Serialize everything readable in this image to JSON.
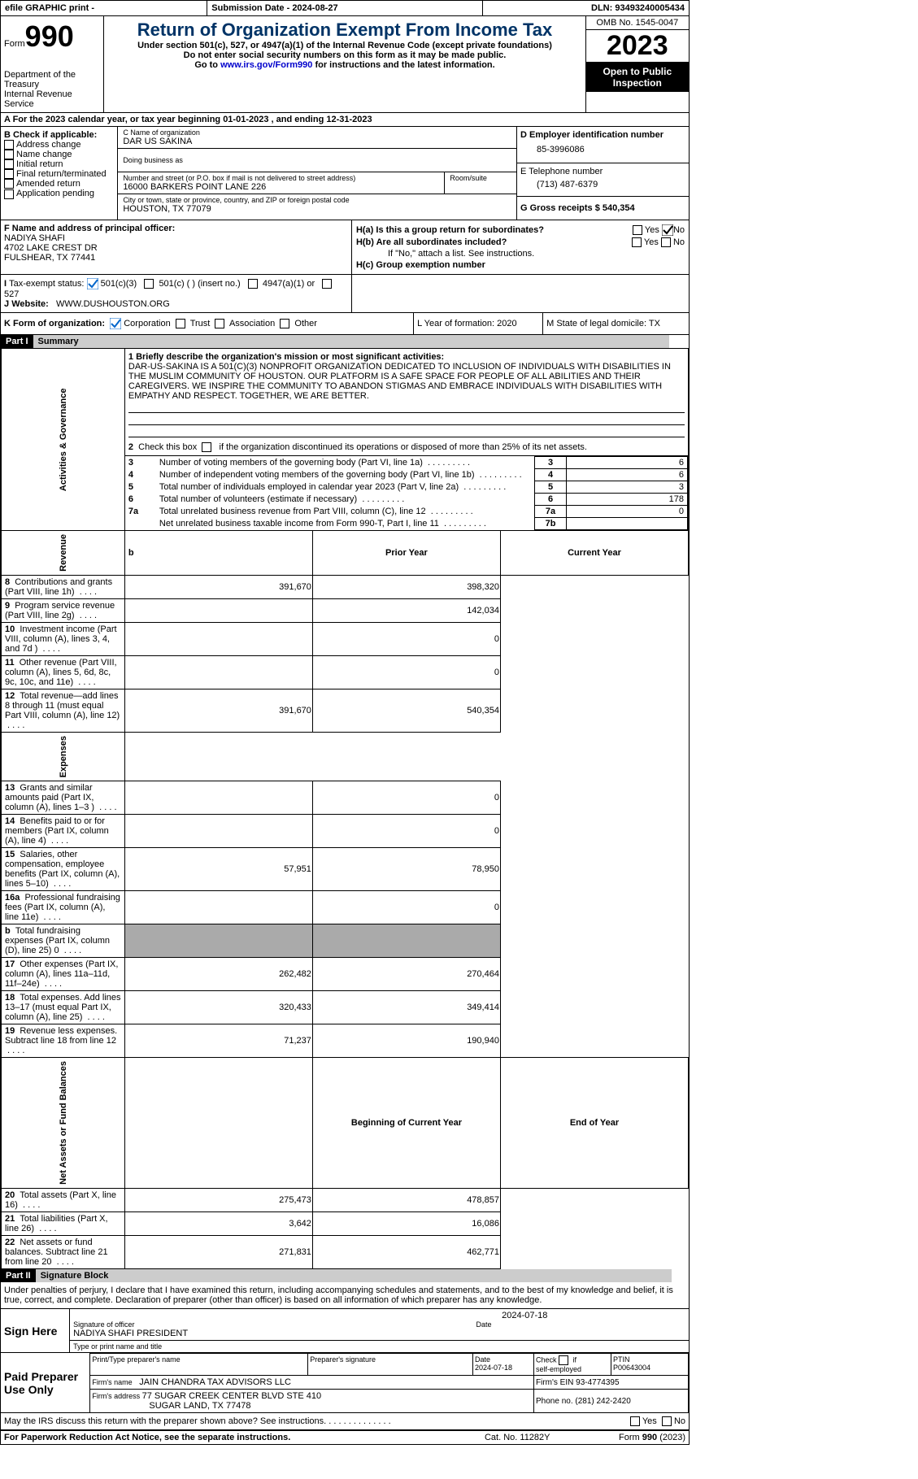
{
  "topbar": {
    "efile_label": "efile GRAPHIC print - ",
    "submission_label": "Submission Date - 2024-08-27",
    "dln_label": "DLN: 93493240005434"
  },
  "header": {
    "form_word": "Form",
    "form_number": "990",
    "dept1": "Department of the Treasury",
    "dept2": "Internal Revenue Service",
    "title": "Return of Organization Exempt From Income Tax",
    "sub1": "Under section 501(c), 527, or 4947(a)(1) of the Internal Revenue Code (except private foundations)",
    "sub2": "Do not enter social security numbers on this form as it may be made public.",
    "sub3_pre": "Go to ",
    "sub3_link": "www.irs.gov/Form990",
    "sub3_post": " for instructions and the latest information.",
    "omb": "OMB No. 1545-0047",
    "year": "2023",
    "open_pub": "Open to Public Inspection"
  },
  "sectionA": {
    "line": "A For the 2023 calendar year, or tax year beginning 01-01-2023    , and ending 12-31-2023",
    "check_label": "B Check if applicable:",
    "checks": [
      "Address change",
      "Name change",
      "Initial return",
      "Final return/terminated",
      "Amended return",
      "Application pending"
    ],
    "name_org_lbl": "C Name of organization",
    "name_org": "DAR US SAKINA",
    "dba_lbl": "Doing business as",
    "addr_lbl": "Number and street (or P.O. box if mail is not delivered to street address)",
    "addr": "16000 BARKERS POINT LANE 226",
    "room_lbl": "Room/suite",
    "city_lbl": "City or town, state or province, country, and ZIP or foreign postal code",
    "city": "HOUSTON, TX  77079",
    "ein_lbl": "D Employer identification number",
    "ein": "85-3996086",
    "tel_lbl": "E Telephone number",
    "tel": "(713) 487-6379",
    "gross_lbl": "G Gross receipts $ 540,354",
    "officer_lbl": "F Name and address of principal officer:",
    "officer1": "NADIYA SHAFI",
    "officer2": "4702 LAKE CREST DR",
    "officer3": "FULSHEAR, TX  77441",
    "h_a": "H(a)  Is this a group return for subordinates?",
    "h_b": "H(b)  Are all subordinates included?",
    "h_note": "If \"No,\" attach a list. See instructions.",
    "h_c": "H(c)  Group exemption number  ",
    "yes": "Yes",
    "no": "No",
    "i_lbl": "Tax-exempt status:",
    "i_501c3": "501(c)(3)",
    "i_501c": "501(c) (  ) (insert no.)",
    "i_4947": "4947(a)(1) or",
    "i_527": "527",
    "j_lbl": "Website: ",
    "j_val": "WWW.DUSHOUSTON.ORG",
    "k_lbl": "K Form of organization:",
    "k_opts": [
      "Corporation",
      "Trust",
      "Association",
      "Other"
    ],
    "l_lbl": "L Year of formation: 2020",
    "m_lbl": "M State of legal domicile: TX"
  },
  "part1": {
    "hdr": "Part I",
    "sub": "Summary",
    "s1_lbl": "1   Briefly describe the organization's mission or most significant activities:",
    "mission": "DAR-US-SAKINA IS A 501(C)(3) NONPROFIT ORGANIZATION DEDICATED TO INCLUSION OF INDIVIDUALS WITH DISABILITIES IN THE MUSLIM COMMUNITY OF HOUSTON. OUR PLATFORM IS A SAFE SPACE FOR PEOPLE OF ALL ABILITIES AND THEIR CAREGIVERS. WE INSPIRE THE COMMUNITY TO ABANDON STIGMAS AND EMBRACE INDIVIDUALS WITH DISABILITIES WITH EMPATHY AND RESPECT. TOGETHER, WE ARE BETTER.",
    "s2": "2   Check this box      if the organization discontinued its operations or disposed of more than 25% of its net assets.",
    "rows_a": [
      {
        "n": "3",
        "t": "Number of voting members of the governing body (Part VI, line 1a)",
        "c": "3",
        "v": "6"
      },
      {
        "n": "4",
        "t": "Number of independent voting members of the governing body (Part VI, line 1b)",
        "c": "4",
        "v": "6"
      },
      {
        "n": "5",
        "t": "Total number of individuals employed in calendar year 2023 (Part V, line 2a)",
        "c": "5",
        "v": "3"
      },
      {
        "n": "6",
        "t": "Total number of volunteers (estimate if necessary)",
        "c": "6",
        "v": "178"
      },
      {
        "n": "7a",
        "t": "Total unrelated business revenue from Part VIII, column (C), line 12",
        "c": "7a",
        "v": "0"
      },
      {
        "n": "",
        "t": "Net unrelated business taxable income from Form 990-T, Part I, line 11",
        "c": "7b",
        "v": ""
      }
    ],
    "prior": "Prior Year",
    "current": "Current Year",
    "revenue": [
      {
        "n": "8",
        "t": "Contributions and grants (Part VIII, line 1h)",
        "p": "391,670",
        "c": "398,320"
      },
      {
        "n": "9",
        "t": "Program service revenue (Part VIII, line 2g)",
        "p": "",
        "c": "142,034"
      },
      {
        "n": "10",
        "t": "Investment income (Part VIII, column (A), lines 3, 4, and 7d )",
        "p": "",
        "c": "0"
      },
      {
        "n": "11",
        "t": "Other revenue (Part VIII, column (A), lines 5, 6d, 8c, 9c, 10c, and 11e)",
        "p": "",
        "c": "0"
      },
      {
        "n": "12",
        "t": "Total revenue—add lines 8 through 11 (must equal Part VIII, column (A), line 12)",
        "p": "391,670",
        "c": "540,354"
      }
    ],
    "expenses": [
      {
        "n": "13",
        "t": "Grants and similar amounts paid (Part IX, column (A), lines 1–3 )",
        "p": "",
        "c": "0"
      },
      {
        "n": "14",
        "t": "Benefits paid to or for members (Part IX, column (A), line 4)",
        "p": "",
        "c": "0"
      },
      {
        "n": "15",
        "t": "Salaries, other compensation, employee benefits (Part IX, column (A), lines 5–10)",
        "p": "57,951",
        "c": "78,950"
      },
      {
        "n": "16a",
        "t": "Professional fundraising fees (Part IX, column (A), line 11e)",
        "p": "",
        "c": "0"
      },
      {
        "n": "b",
        "t": "Total fundraising expenses (Part IX, column (D), line 25)  0",
        "p": "GRAY",
        "c": "GRAY"
      },
      {
        "n": "17",
        "t": "Other expenses (Part IX, column (A), lines 11a–11d, 11f–24e)",
        "p": "262,482",
        "c": "270,464"
      },
      {
        "n": "18",
        "t": "Total expenses. Add lines 13–17 (must equal Part IX, column (A), line 25)",
        "p": "320,433",
        "c": "349,414"
      },
      {
        "n": "19",
        "t": "Revenue less expenses. Subtract line 18 from line 12",
        "p": "71,237",
        "c": "190,940"
      }
    ],
    "begin": "Beginning of Current Year",
    "end": "End of Year",
    "netassets": [
      {
        "n": "20",
        "t": "Total assets (Part X, line 16)",
        "p": "275,473",
        "c": "478,857"
      },
      {
        "n": "21",
        "t": "Total liabilities (Part X, line 26)",
        "p": "3,642",
        "c": "16,086"
      },
      {
        "n": "22",
        "t": "Net assets or fund balances. Subtract line 21 from line 20",
        "p": "271,831",
        "c": "462,771"
      }
    ],
    "sides": [
      "Activities & Governance",
      "Revenue",
      "Expenses",
      "Net Assets or Fund Balances"
    ]
  },
  "part2": {
    "hdr": "Part II",
    "sub": "Signature Block",
    "decl": "Under penalties of perjury, I declare that I have examined this return, including accompanying schedules and statements, and to the best of my knowledge and belief, it is true, correct, and complete. Declaration of preparer (other than officer) is based on all information of which preparer has any knowledge.",
    "sign_here": "Sign Here",
    "date": "2024-07-18",
    "sig_lbl": "Signature of officer",
    "sig_name": "NADIYA SHAFI PRESIDENT",
    "type_lbl": "Type or print name and title",
    "paid": "Paid Preparer Use Only",
    "p_name_lbl": "Print/Type preparer's name",
    "p_sig_lbl": "Preparer's signature",
    "p_date_lbl": "Date",
    "p_date": "2024-07-18",
    "p_check": "Check       if self-employed",
    "ptin_lbl": "PTIN",
    "ptin": "P00643004",
    "firm_name_lbl": "Firm's name   ",
    "firm_name": "JAIN CHANDRA TAX ADVISORS LLC",
    "firm_ein_lbl": "Firm's EIN  93-4774395",
    "firm_addr_lbl": "Firm's address ",
    "firm_addr": "77 SUGAR CREEK CENTER BLVD STE 410",
    "firm_addr2": "SUGAR LAND, TX  77478",
    "firm_phone": "Phone no. (281) 242-2420",
    "may_irs": "May the IRS discuss this return with the preparer shown above? See instructions.",
    "paperwork": "For Paperwork Reduction Act Notice, see the separate instructions.",
    "cat": "Cat. No. 11282Y",
    "form_footer": "Form 990 (2023)"
  }
}
